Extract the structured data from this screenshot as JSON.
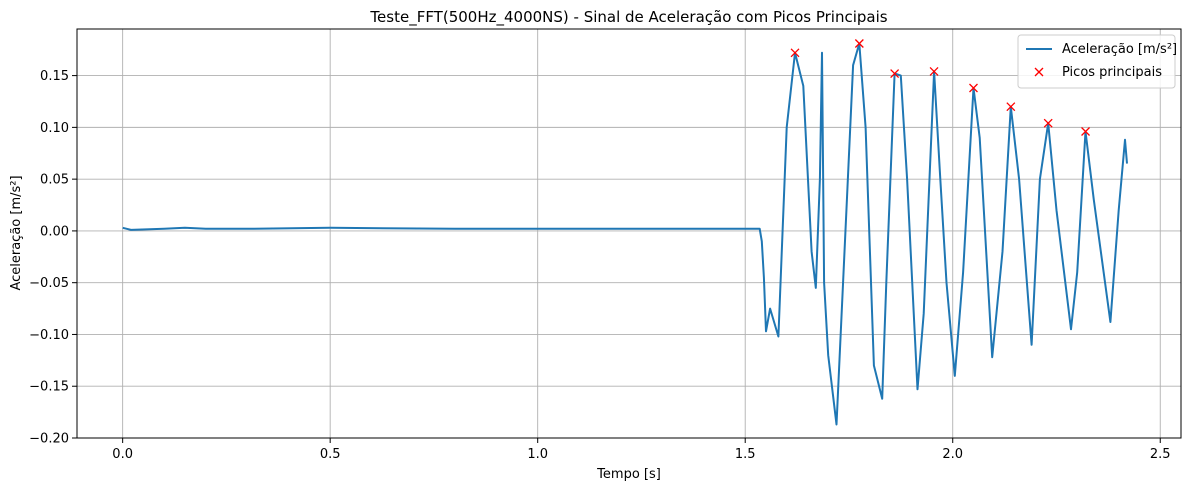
{
  "chart_data": {
    "type": "line",
    "title": "Teste_FFT(500Hz_4000NS) - Sinal de Aceleração com Picos Principais",
    "xlabel": "Tempo [s]",
    "ylabel": "Aceleração [m/s²]",
    "xlim": [
      -0.11,
      2.55
    ],
    "ylim": [
      -0.2,
      0.195
    ],
    "xticks": [
      0.0,
      0.5,
      1.0,
      1.5,
      2.0,
      2.5
    ],
    "xtick_labels": [
      "0.0",
      "0.5",
      "1.0",
      "1.5",
      "2.0",
      "2.5"
    ],
    "yticks": [
      -0.2,
      -0.15,
      -0.1,
      -0.05,
      0.0,
      0.05,
      0.1,
      0.15
    ],
    "ytick_labels": [
      "−0.20",
      "−0.15",
      "−0.10",
      "−0.05",
      "0.00",
      "0.05",
      "0.10",
      "0.15"
    ],
    "grid": true,
    "legend_position": "top-right",
    "series": [
      {
        "name": "Aceleração [m/s²]",
        "kind": "line",
        "color": "#1f77b4",
        "x": [
          0.0,
          0.02,
          0.1,
          0.15,
          0.2,
          0.3,
          0.5,
          0.8,
          1.0,
          1.2,
          1.4,
          1.5,
          1.535,
          1.54,
          1.545,
          1.55,
          1.56,
          1.58,
          1.6,
          1.62,
          1.64,
          1.66,
          1.67,
          1.68,
          1.685,
          1.69,
          1.7,
          1.72,
          1.745,
          1.76,
          1.775,
          1.79,
          1.81,
          1.83,
          1.84,
          1.86,
          1.875,
          1.89,
          1.915,
          1.93,
          1.955,
          1.97,
          1.985,
          2.005,
          2.025,
          2.05,
          2.065,
          2.095,
          2.12,
          2.14,
          2.16,
          2.19,
          2.21,
          2.23,
          2.25,
          2.285,
          2.3,
          2.32,
          2.34,
          2.38,
          2.4,
          2.415,
          2.42
        ],
        "y": [
          0.003,
          0.001,
          0.002,
          0.003,
          0.002,
          0.002,
          0.003,
          0.002,
          0.002,
          0.002,
          0.002,
          0.002,
          0.002,
          -0.01,
          -0.045,
          -0.097,
          -0.075,
          -0.102,
          0.1,
          0.172,
          0.14,
          -0.02,
          -0.055,
          0.05,
          0.172,
          -0.05,
          -0.12,
          -0.187,
          0.03,
          0.16,
          0.181,
          0.1,
          -0.13,
          -0.162,
          -0.05,
          0.152,
          0.15,
          0.05,
          -0.153,
          -0.08,
          0.154,
          0.05,
          -0.05,
          -0.14,
          -0.04,
          0.138,
          0.09,
          -0.122,
          -0.02,
          0.12,
          0.05,
          -0.11,
          0.05,
          0.104,
          0.02,
          -0.095,
          -0.04,
          0.096,
          0.03,
          -0.088,
          0.02,
          0.088,
          0.065
        ]
      },
      {
        "name": "Picos principais",
        "kind": "markers",
        "marker": "x",
        "color": "#ff0000",
        "x": [
          1.62,
          1.775,
          1.86,
          1.955,
          2.05,
          2.14,
          2.23,
          2.32
        ],
        "y": [
          0.172,
          0.181,
          0.152,
          0.154,
          0.138,
          0.12,
          0.104,
          0.096
        ]
      }
    ]
  }
}
